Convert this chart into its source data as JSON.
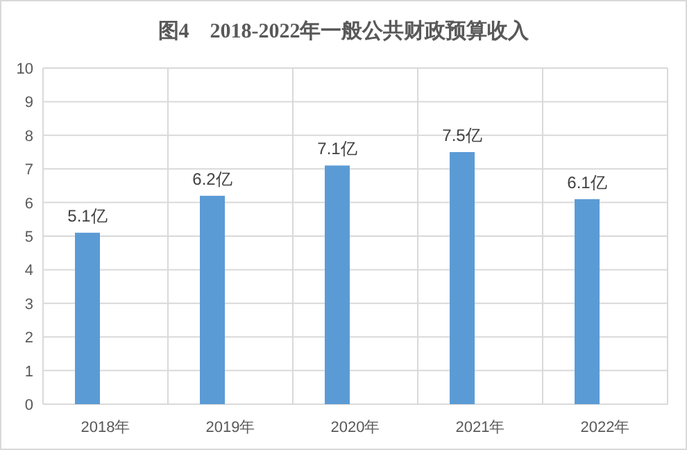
{
  "chart_data": {
    "type": "bar",
    "title": "图4　2018-2022年一般公共财政预算收入",
    "categories": [
      "2018年",
      "2019年",
      "2020年",
      "2021年",
      "2022年"
    ],
    "values": [
      5.1,
      6.2,
      7.1,
      7.5,
      6.1
    ],
    "value_labels": [
      "5.1亿",
      "6.2亿",
      "7.1亿",
      "7.5亿",
      "6.1亿"
    ],
    "color": "#5b9bd5",
    "ylim": [
      0,
      10
    ],
    "yticks": [
      0,
      1,
      2,
      3,
      4,
      5,
      6,
      7,
      8,
      9,
      10
    ],
    "grid": true
  }
}
